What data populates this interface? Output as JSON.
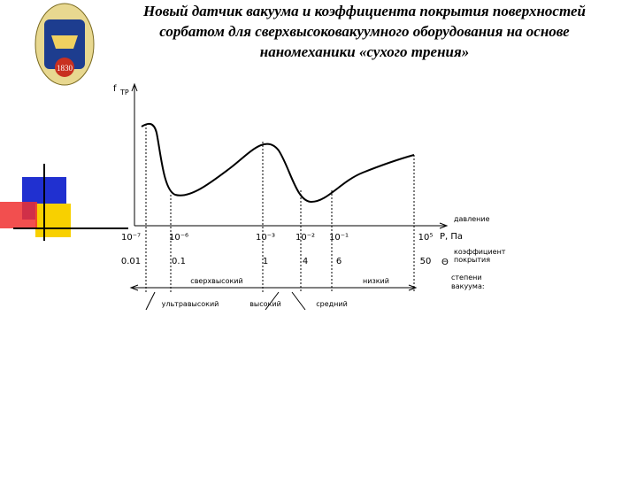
{
  "title_lines": [
    "Новый датчик вакуума и коэффициента покрытия поверхностей",
    "сорбатом для сверхвысоковакуумного оборудования на основе",
    "наномеханики «сухого трения»"
  ],
  "logo_year": "1830",
  "y_axis": {
    "symbol": "f",
    "subscript": "ТР"
  },
  "pressure_ticks": [
    "10⁻⁷",
    "10⁻⁶",
    "10⁻³",
    "10⁻²",
    "10⁻¹",
    "10⁵"
  ],
  "pressure_unit": "Р, Па",
  "pressure_label": "давление",
  "coverage_ticks": [
    "0.01",
    "0.1",
    "1",
    "4",
    "6",
    "50"
  ],
  "coverage_symbol": "Θ",
  "coverage_label": [
    "коэффициент",
    "покрытия"
  ],
  "vacuum_label": [
    "степени",
    "вакуума:"
  ],
  "vacuum_levels_upper": [
    "сверхвысокий",
    "низкий"
  ],
  "vacuum_levels_lower": [
    "ультравысокий",
    "высокий",
    "средний"
  ]
}
